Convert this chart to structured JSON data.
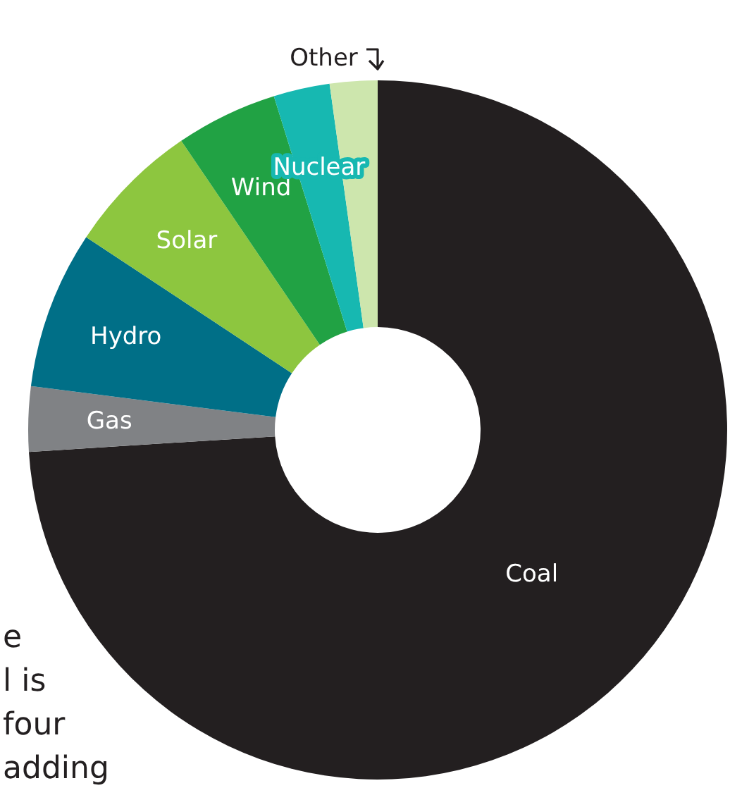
{
  "chart_data": {
    "type": "donut",
    "categories": [
      "Coal",
      "Gas",
      "Hydro",
      "Solar",
      "Wind",
      "Nuclear",
      "Other"
    ],
    "values": [
      74.0,
      3.0,
      7.3,
      6.2,
      4.7,
      2.6,
      2.2
    ],
    "colors": [
      "#231f20",
      "#808285",
      "#006f87",
      "#8dc63f",
      "#21a244",
      "#17b8b1",
      "#cde6ad"
    ],
    "annotations": [
      "e",
      "l is",
      "four",
      "adding"
    ]
  }
}
